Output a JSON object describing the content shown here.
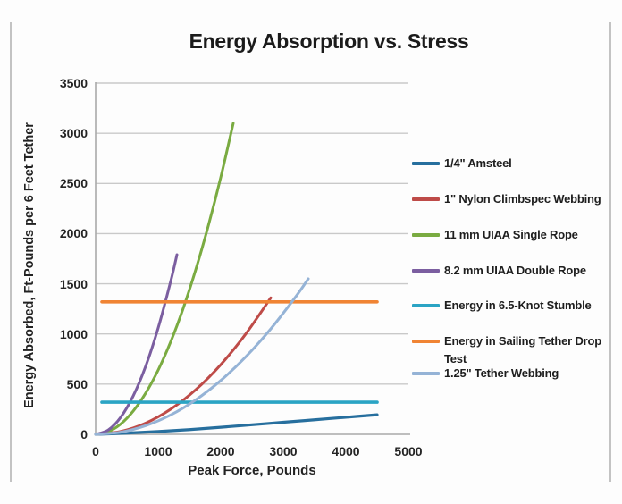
{
  "chart_data": {
    "type": "line",
    "title": "Energy Absorption vs. Stress",
    "xlabel": "Peak Force, Pounds",
    "ylabel": "Energy Absorbed, Ft-Pounds per 6 Feet Tether",
    "xlim": [
      0,
      5000
    ],
    "ylim": [
      0,
      3500
    ],
    "x_ticks": [
      0,
      1000,
      2000,
      3000,
      4000,
      5000
    ],
    "y_ticks": [
      0,
      500,
      1000,
      1500,
      2000,
      2500,
      3000,
      3500
    ],
    "grid": "horizontal-only",
    "legend_position": "right",
    "colors": {
      "gridline": "#c9c9c9",
      "axis": "#a9a9a9",
      "text": "#1f1f1f"
    },
    "series": [
      {
        "name": "1/4\" Amsteel",
        "color": "#276F9E",
        "stroke_width": 3.2,
        "points": [
          [
            0,
            0
          ],
          [
            500,
            12
          ],
          [
            1000,
            28
          ],
          [
            1500,
            47
          ],
          [
            2000,
            70
          ],
          [
            2500,
            95
          ],
          [
            3000,
            120
          ],
          [
            3500,
            145
          ],
          [
            4000,
            170
          ],
          [
            4500,
            195
          ]
        ]
      },
      {
        "name": "1\" Nylon Climbspec Webbing",
        "color": "#BE4B48",
        "stroke_width": 3,
        "points": [
          [
            0,
            0
          ],
          [
            400,
            28
          ],
          [
            800,
            111
          ],
          [
            1200,
            250
          ],
          [
            1600,
            444
          ],
          [
            2000,
            694
          ],
          [
            2400,
            1000
          ],
          [
            2800,
            1360
          ]
        ]
      },
      {
        "name": "11 mm UIAA Single Rope",
        "color": "#7AAB41",
        "stroke_width": 3,
        "points": [
          [
            0,
            0
          ],
          [
            200,
            26
          ],
          [
            400,
            102
          ],
          [
            600,
            231
          ],
          [
            800,
            410
          ],
          [
            1000,
            640
          ],
          [
            1200,
            922
          ],
          [
            1400,
            1255
          ],
          [
            1600,
            1640
          ],
          [
            1800,
            2075
          ],
          [
            2000,
            2560
          ],
          [
            2200,
            3100
          ]
        ]
      },
      {
        "name": "8.2 mm UIAA Double Rope",
        "color": "#7B5EA0",
        "stroke_width": 3,
        "points": [
          [
            0,
            0
          ],
          [
            200,
            42
          ],
          [
            400,
            169
          ],
          [
            600,
            381
          ],
          [
            800,
            678
          ],
          [
            1000,
            1060
          ],
          [
            1200,
            1525
          ],
          [
            1300,
            1790
          ]
        ]
      },
      {
        "name": "Energy in 6.5-Knot Stumble",
        "color": "#2BA4C4",
        "stroke_width": 3.6,
        "points": [
          [
            100,
            320
          ],
          [
            4500,
            320
          ]
        ]
      },
      {
        "name": "Energy in Sailing Tether Drop Test",
        "color": "#F08434",
        "stroke_width": 3.6,
        "points": [
          [
            100,
            1320
          ],
          [
            4500,
            1320
          ]
        ]
      },
      {
        "name": "1.25\" Tether Webbing",
        "color": "#95B3D6",
        "stroke_width": 3,
        "points": [
          [
            0,
            0
          ],
          [
            400,
            21
          ],
          [
            800,
            86
          ],
          [
            1200,
            193
          ],
          [
            1600,
            343
          ],
          [
            2000,
            536
          ],
          [
            2400,
            772
          ],
          [
            2800,
            1051
          ],
          [
            3200,
            1372
          ],
          [
            3400,
            1550
          ]
        ]
      }
    ]
  }
}
